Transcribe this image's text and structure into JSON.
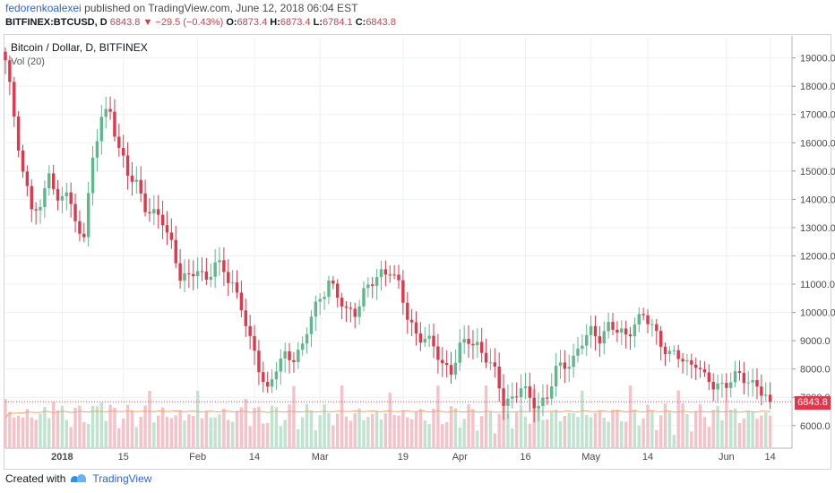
{
  "header": {
    "author": "fedorenkoalexei",
    "published_text": "published on TradingView.com, June 12, 2018 06:04 EST"
  },
  "quote": {
    "symbol": "BITFINEX:BTCUSD, D",
    "price": "6843.8",
    "change": "−29.5 (−0.43%)",
    "open_label": "O:",
    "open": "6873.4",
    "high_label": "H:",
    "high": "6873.4",
    "low_label": "L:",
    "low": "6784.1",
    "close_label": "C:",
    "close": "6843.8"
  },
  "legend": {
    "title": "Bitcoin / Dollar, D, BITFINEX",
    "volume": "Vol (20)"
  },
  "last_price_tag": "6843.8",
  "footer": {
    "created_with": "Created with",
    "brand": "TradingView"
  },
  "colors": {
    "up": "#5fb88c",
    "down": "#e0384b",
    "vol_up": "#bfe3cf",
    "vol_down": "#f4c2c8",
    "vol_ma": "#f7a068",
    "grid": "#eef0f3"
  },
  "chart_data": {
    "type": "candlestick",
    "title": "Bitcoin / Dollar, D, BITFINEX",
    "y_ticks": [
      6000,
      7000,
      8000,
      9000,
      10000,
      11000,
      12000,
      13000,
      14000,
      15000,
      16000,
      17000,
      18000,
      19000
    ],
    "y_tick_labels": [
      "6000.0",
      "7000.0",
      "8000.0",
      "9000.0",
      "10000.0",
      "11000.0",
      "12000.0",
      "13000.0",
      "14000.0",
      "15000.0",
      "16000.0",
      "17000.0",
      "18000.0",
      "19000.0"
    ],
    "ylim": [
      5200,
      19400
    ],
    "x_tick_labels": [
      "2018",
      "15",
      "Feb",
      "14",
      "Mar",
      "19",
      "Apr",
      "16",
      "May",
      "14",
      "Jun",
      "14"
    ],
    "x_tick_days": [
      13,
      27,
      44,
      57,
      72,
      91,
      104,
      119,
      134,
      147,
      165,
      175
    ],
    "last_price": 6843.8,
    "volume_ma_period": 20,
    "close_points": [
      [
        0,
        18800
      ],
      [
        2,
        17000
      ],
      [
        4,
        15000
      ],
      [
        6,
        13700
      ],
      [
        8,
        13500
      ],
      [
        10,
        15200
      ],
      [
        12,
        13800
      ],
      [
        14,
        14300
      ],
      [
        16,
        13100
      ],
      [
        18,
        12900
      ],
      [
        20,
        15300
      ],
      [
        22,
        16900
      ],
      [
        24,
        17200
      ],
      [
        26,
        15800
      ],
      [
        28,
        14800
      ],
      [
        30,
        14600
      ],
      [
        32,
        13800
      ],
      [
        34,
        13400
      ],
      [
        36,
        13200
      ],
      [
        38,
        12500
      ],
      [
        40,
        11300
      ],
      [
        42,
        11100
      ],
      [
        44,
        11600
      ],
      [
        46,
        11200
      ],
      [
        48,
        11700
      ],
      [
        50,
        11400
      ],
      [
        52,
        11100
      ],
      [
        54,
        10200
      ],
      [
        56,
        8900
      ],
      [
        58,
        8100
      ],
      [
        60,
        7300
      ],
      [
        62,
        8000
      ],
      [
        64,
        8400
      ],
      [
        66,
        8500
      ],
      [
        68,
        8800
      ],
      [
        70,
        9800
      ],
      [
        72,
        10500
      ],
      [
        74,
        11200
      ],
      [
        76,
        10500
      ],
      [
        78,
        10000
      ],
      [
        80,
        10100
      ],
      [
        82,
        10700
      ],
      [
        84,
        11000
      ],
      [
        86,
        11400
      ],
      [
        88,
        11600
      ],
      [
        90,
        10900
      ],
      [
        92,
        9800
      ],
      [
        94,
        9300
      ],
      [
        96,
        9100
      ],
      [
        98,
        8700
      ],
      [
        100,
        8200
      ],
      [
        102,
        8000
      ],
      [
        104,
        8700
      ],
      [
        106,
        9000
      ],
      [
        108,
        8900
      ],
      [
        110,
        8400
      ],
      [
        112,
        7800
      ],
      [
        114,
        6900
      ],
      [
        116,
        7000
      ],
      [
        118,
        7300
      ],
      [
        120,
        6900
      ],
      [
        122,
        6800
      ],
      [
        124,
        7000
      ],
      [
        126,
        7900
      ],
      [
        128,
        8200
      ],
      [
        130,
        8400
      ],
      [
        132,
        8900
      ],
      [
        134,
        9300
      ],
      [
        136,
        9200
      ],
      [
        138,
        9500
      ],
      [
        140,
        9300
      ],
      [
        142,
        9200
      ],
      [
        144,
        9700
      ],
      [
        146,
        9800
      ],
      [
        148,
        9500
      ],
      [
        150,
        9000
      ],
      [
        152,
        8500
      ],
      [
        154,
        8400
      ],
      [
        156,
        8200
      ],
      [
        158,
        8300
      ],
      [
        160,
        7600
      ],
      [
        162,
        7400
      ],
      [
        164,
        7500
      ],
      [
        166,
        7600
      ],
      [
        168,
        7700
      ],
      [
        170,
        7600
      ],
      [
        172,
        7500
      ],
      [
        174,
        6900
      ],
      [
        175,
        6843.8
      ]
    ]
  }
}
